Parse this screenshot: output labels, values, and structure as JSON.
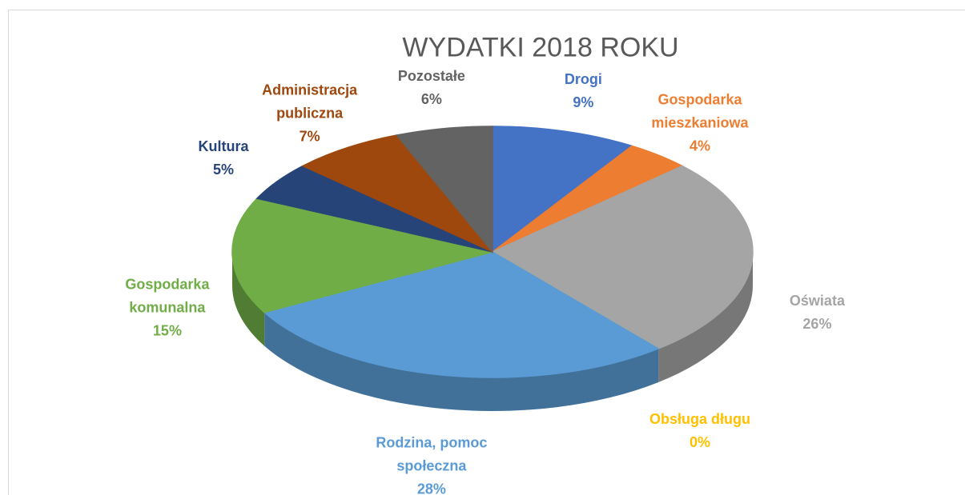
{
  "chart_data": {
    "type": "pie",
    "title": "WYDATKI 2018 ROKU",
    "categories": [
      "Drogi",
      "Gospodarka mieszkaniowa",
      "Oświata",
      "Obsługa długu",
      "Rodzina, pomoc społeczna",
      "Gospodarka komunalna",
      "Kultura",
      "Administracja publiczna",
      "Pozostałe"
    ],
    "values": [
      9,
      4,
      26,
      0,
      28,
      15,
      5,
      7,
      6
    ],
    "value_labels": [
      "9%",
      "4%",
      "26%",
      "0%",
      "28%",
      "15%",
      "5%",
      "7%",
      "6%"
    ],
    "colors": [
      "#4472c4",
      "#ed7d31",
      "#a5a5a5",
      "#ffc000",
      "#5b9bd5",
      "#70ad47",
      "#264478",
      "#9e480e",
      "#636363"
    ]
  }
}
